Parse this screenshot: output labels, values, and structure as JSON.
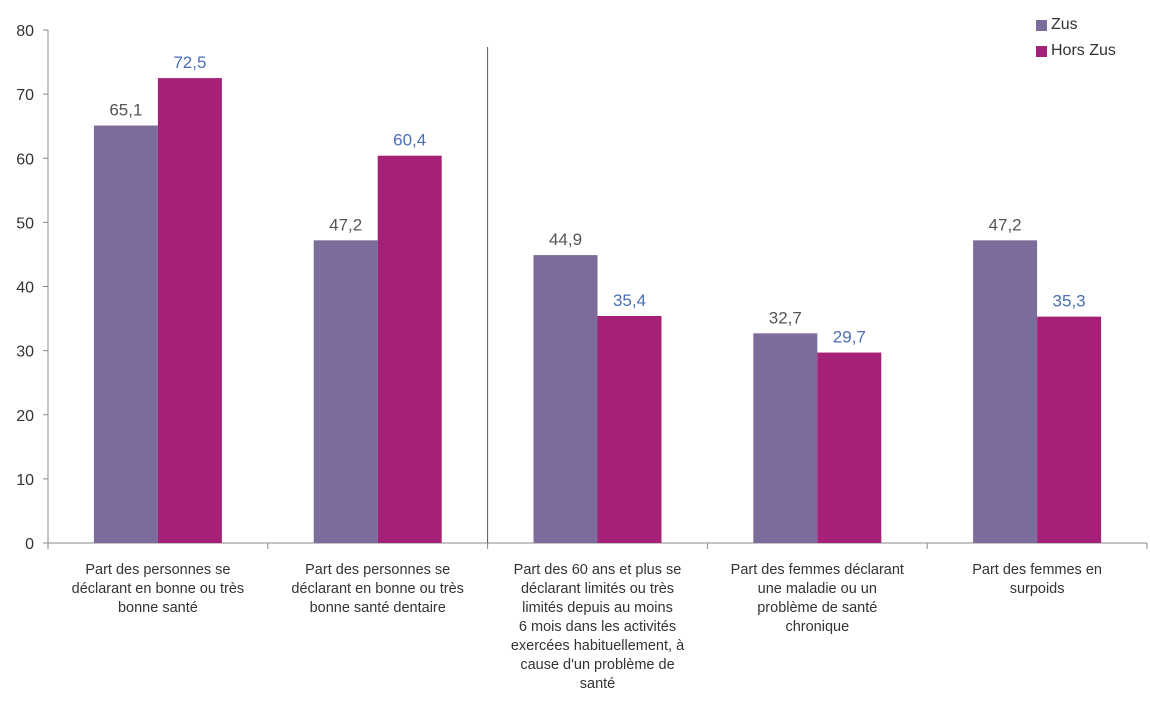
{
  "chart_data": {
    "type": "bar",
    "categories": [
      [
        "Part des personnes se",
        "déclarant en bonne ou très",
        "bonne santé"
      ],
      [
        "Part des personnes se",
        "déclarant en bonne ou très",
        "bonne santé dentaire"
      ],
      [
        "Part des 60 ans et plus se",
        "déclarant limités ou très",
        "limités depuis au moins",
        "6 mois dans les activités",
        "exercées habituellement, à",
        "cause d'un problème de",
        "santé"
      ],
      [
        "Part des femmes déclarant",
        "une maladie ou un",
        "problème de santé",
        "chronique"
      ],
      [
        "Part des femmes en",
        "surpoids"
      ]
    ],
    "series": [
      {
        "name": "Zus",
        "values": [
          65.1,
          47.2,
          44.9,
          32.7,
          47.2
        ],
        "labels": [
          "65,1",
          "47,2",
          "44,9",
          "32,7",
          "47,2"
        ],
        "color": "#7b6c9b",
        "label_color": "#555555"
      },
      {
        "name": "Hors Zus",
        "values": [
          72.5,
          60.4,
          35.4,
          29.7,
          35.3
        ],
        "labels": [
          "72,5",
          "60,4",
          "35,4",
          "29,7",
          "35,3"
        ],
        "color": "#a52178",
        "label_color": "#4a6fb5"
      }
    ],
    "ylim": [
      0,
      80
    ],
    "yticks": [
      0,
      10,
      20,
      30,
      40,
      50,
      60,
      70,
      80
    ],
    "separator_after_category": 1,
    "legend_position": "top-right",
    "grid": false
  }
}
